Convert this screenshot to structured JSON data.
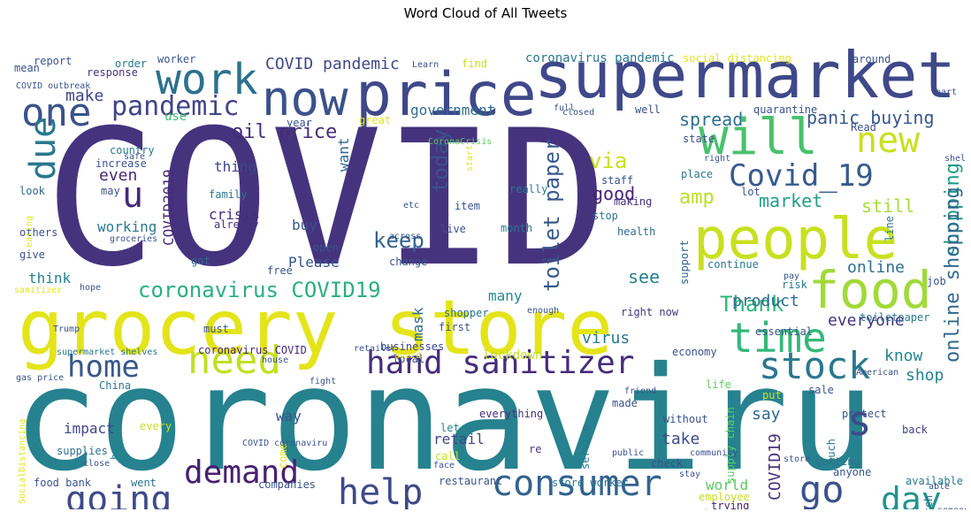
{
  "title": "Word Cloud of All Tweets",
  "words": [
    {
      "t": "COVID",
      "c": "#46337e"
    },
    {
      "t": "coronaviru",
      "c": "#26828e"
    },
    {
      "t": "grocery store",
      "c": "#e4e41a"
    },
    {
      "t": "supermarket",
      "c": "#3f4889"
    },
    {
      "t": "price",
      "c": "#3f4889"
    },
    {
      "t": "now",
      "c": "#3b528b"
    },
    {
      "t": "people",
      "c": "#c8e020"
    },
    {
      "t": "food",
      "c": "#a0da39"
    },
    {
      "t": "will",
      "c": "#4ac16d"
    },
    {
      "t": "hand sanitizer",
      "c": "#472d7b"
    },
    {
      "t": "consumer",
      "c": "#33638d"
    },
    {
      "t": "need",
      "c": "#c2df23"
    },
    {
      "t": "stock",
      "c": "#2a788e"
    },
    {
      "t": "time",
      "c": "#35b779"
    },
    {
      "t": "home",
      "c": "#38588c"
    },
    {
      "t": "going",
      "c": "#3e4a89"
    },
    {
      "t": "demand",
      "c": "#482071"
    },
    {
      "t": "help",
      "c": "#3e4989"
    },
    {
      "t": "work",
      "c": "#2c728e"
    },
    {
      "t": "one",
      "c": "#3b528b"
    },
    {
      "t": "due",
      "c": "#2a788e"
    },
    {
      "t": "Covid_19",
      "c": "#375a8c"
    },
    {
      "t": "new",
      "c": "#c8e020"
    },
    {
      "t": "go",
      "c": "#3b528b"
    },
    {
      "t": "day",
      "c": "#1f948c"
    },
    {
      "t": "s",
      "c": "#3e4989"
    },
    {
      "t": "u",
      "c": "#482878"
    },
    {
      "t": "pandemic",
      "c": "#414487"
    },
    {
      "t": "coronavirus COVID19",
      "c": "#2ab07f"
    },
    {
      "t": "COVID19 coronavirus",
      "c": "#90d743"
    },
    {
      "t": "toilet paper",
      "c": "#38598c"
    },
    {
      "t": "oil price",
      "c": "#472c7a"
    },
    {
      "t": "spread",
      "c": "#2c718e"
    },
    {
      "t": "panic buying",
      "c": "#38588c"
    },
    {
      "t": "shopping",
      "c": "#1f9a8a"
    },
    {
      "t": "online shopping",
      "c": "#31688e"
    },
    {
      "t": "COVID pandemic",
      "c": "#3f4889"
    },
    {
      "t": "Thank",
      "c": "#2fb47c"
    },
    {
      "t": "keep",
      "c": "#33638d"
    },
    {
      "t": "today",
      "c": "#3b528b"
    },
    {
      "t": "mask",
      "c": "#306a8e"
    },
    {
      "t": "via",
      "c": "#c8e020"
    },
    {
      "t": "amp",
      "c": "#bade28"
    },
    {
      "t": "good",
      "c": "#482475"
    },
    {
      "t": "market",
      "c": "#1f9e89"
    },
    {
      "t": "still",
      "c": "#a8db34"
    },
    {
      "t": "see",
      "c": "#26828e"
    },
    {
      "t": "online",
      "c": "#2d708e"
    },
    {
      "t": "everyone",
      "c": "#46327e"
    },
    {
      "t": "know",
      "c": "#24868e"
    },
    {
      "t": "shop",
      "c": "#25848e"
    },
    {
      "t": "say",
      "c": "#31688e"
    },
    {
      "t": "take",
      "c": "#3e4c8a"
    },
    {
      "t": "product",
      "c": "#306a8e"
    },
    {
      "t": "virus",
      "c": "#2a788e"
    },
    {
      "t": "make",
      "c": "#414487"
    },
    {
      "t": "even",
      "c": "#472878"
    },
    {
      "t": "working",
      "c": "#2a788e"
    },
    {
      "t": "crisis",
      "c": "#472c7a"
    },
    {
      "t": "buy",
      "c": "#3b528b"
    },
    {
      "t": "thing",
      "c": "#3f4788"
    },
    {
      "t": "want",
      "c": "#32648e"
    },
    {
      "t": "COVID2019",
      "c": "#482878"
    },
    {
      "t": "think",
      "c": "#26828e"
    },
    {
      "t": "many",
      "c": "#23898e"
    },
    {
      "t": "Please",
      "c": "#3b528b"
    },
    {
      "t": "government",
      "c": "#2f6c8e"
    },
    {
      "t": "use",
      "c": "#3dbc74"
    },
    {
      "t": "impact",
      "c": "#404688"
    },
    {
      "t": "way",
      "c": "#3b528b"
    },
    {
      "t": "week",
      "c": "#31688e"
    },
    {
      "t": "retail",
      "c": "#414487"
    },
    {
      "t": "customer",
      "c": "#2c728e"
    },
    {
      "t": "world",
      "c": "#5ec962"
    },
    {
      "t": "business",
      "c": "#2e6f8e"
    },
    {
      "t": "COVID19",
      "c": "#46337e"
    },
    {
      "t": "lockdown",
      "c": "#c0df25"
    },
    {
      "t": "local",
      "c": "#3e4a89"
    },
    {
      "t": "supplies",
      "c": "#2d708e"
    },
    {
      "t": "store worker",
      "c": "#2a778e"
    },
    {
      "t": "restaurant",
      "c": "#3b528b"
    },
    {
      "t": "shopping",
      "c": "#c8e020"
    },
    {
      "t": "food bank",
      "c": "#3b528b"
    },
    {
      "t": "companies",
      "c": "#3b528b"
    },
    {
      "t": "went",
      "c": "#2d708e"
    },
    {
      "t": "money",
      "c": "#482071"
    },
    {
      "t": "said",
      "c": "#3b528b"
    },
    {
      "t": "hour",
      "c": "#26828e"
    },
    {
      "t": "available",
      "c": "#2a788e"
    },
    {
      "t": "employee",
      "c": "#c8e020"
    },
    {
      "t": "trying",
      "c": "#482173"
    },
    {
      "t": "UK",
      "c": "#3b528b"
    },
    {
      "t": "March",
      "c": "#2c728e"
    },
    {
      "t": "back",
      "c": "#414487"
    },
    {
      "t": "getting",
      "c": "#2c728e"
    },
    {
      "t": "protect",
      "c": "#3b528b"
    },
    {
      "t": "everything",
      "c": "#472d7b"
    },
    {
      "t": "check",
      "c": "#3b528b"
    },
    {
      "t": "let",
      "c": "#24868e"
    },
    {
      "t": "call",
      "c": "#c8e020"
    },
    {
      "t": "re",
      "c": "#46337e"
    },
    {
      "t": "without",
      "c": "#3b528b"
    },
    {
      "t": "every",
      "c": "#c8e020"
    },
    {
      "t": "China",
      "c": "#2a788e"
    },
    {
      "t": "must",
      "c": "#3b528b"
    },
    {
      "t": "businesses",
      "c": "#3e4989"
    },
    {
      "t": "first",
      "c": "#3b528b"
    },
    {
      "t": "coronavirus COVID",
      "c": "#482878"
    },
    {
      "t": "economy",
      "c": "#3b528b"
    },
    {
      "t": "essential",
      "c": "#3b528b"
    },
    {
      "t": "continue",
      "c": "#2a788e"
    },
    {
      "t": "risk",
      "c": "#2a788e"
    },
    {
      "t": "job",
      "c": "#3b528b"
    },
    {
      "t": "support",
      "c": "#31688e"
    },
    {
      "t": "right now",
      "c": "#46337e"
    },
    {
      "t": "sanitizer",
      "c": "#e4e41a"
    },
    {
      "t": "shopper",
      "c": "#2d708e"
    },
    {
      "t": "free",
      "c": "#3b528b"
    },
    {
      "t": "got",
      "c": "#31688e"
    },
    {
      "t": "give",
      "c": "#3b528b"
    },
    {
      "t": "others",
      "c": "#3b528b"
    },
    {
      "t": "look",
      "c": "#31688e"
    },
    {
      "t": "may",
      "c": "#3b528b"
    },
    {
      "t": "country",
      "c": "#2a788e"
    },
    {
      "t": "increase",
      "c": "#3b528b"
    },
    {
      "t": "family",
      "c": "#2a788e"
    },
    {
      "t": "already",
      "c": "#46337e"
    },
    {
      "t": "open",
      "c": "#3b528b"
    },
    {
      "t": "change",
      "c": "#3b528b"
    },
    {
      "t": "year",
      "c": "#3b528b"
    },
    {
      "t": "great",
      "c": "#e4e41a"
    },
    {
      "t": "quarantine",
      "c": "#3b528b"
    },
    {
      "t": "well",
      "c": "#3b528b"
    },
    {
      "t": "state",
      "c": "#3b528b"
    },
    {
      "t": "place",
      "c": "#2a788e"
    },
    {
      "t": "lot",
      "c": "#3b528b"
    },
    {
      "t": "really",
      "c": "#2a788e"
    },
    {
      "t": "staff",
      "c": "#3b528b"
    },
    {
      "t": "making",
      "c": "#46337e"
    },
    {
      "t": "item",
      "c": "#3b528b"
    },
    {
      "t": "stop",
      "c": "#2a788e"
    },
    {
      "t": "live",
      "c": "#3b528b"
    },
    {
      "t": "month",
      "c": "#2a788e"
    },
    {
      "t": "health",
      "c": "#31688e"
    },
    {
      "t": "report",
      "c": "#3b528b"
    },
    {
      "t": "mean",
      "c": "#3b528b"
    },
    {
      "t": "order",
      "c": "#2a788e"
    },
    {
      "t": "response",
      "c": "#46337e"
    },
    {
      "t": "worker",
      "c": "#3b528b"
    },
    {
      "t": "find",
      "c": "#c8e020"
    },
    {
      "t": "around",
      "c": "#3b528b"
    },
    {
      "t": "coronavirus pandemic",
      "c": "#2a788e"
    },
    {
      "t": "social distancing",
      "c": "#e4e41a"
    },
    {
      "t": "Read",
      "c": "#3b528b"
    },
    {
      "t": "life",
      "c": "#5ec962"
    },
    {
      "t": "put",
      "c": "#c8e020"
    },
    {
      "t": "sale",
      "c": "#3b528b"
    },
    {
      "t": "made",
      "c": "#3b528b"
    },
    {
      "t": "service",
      "c": "#2a788e"
    },
    {
      "t": "supply chain",
      "c": "#5ec962"
    },
    {
      "t": "much",
      "c": "#2a788e"
    },
    {
      "t": "anyone",
      "c": "#3b528b"
    },
    {
      "t": "toiletpaper",
      "c": "#2a788e"
    },
    {
      "t": "line",
      "c": "#2a788e"
    },
    {
      "t": "SocialDistancing",
      "c": "#e4e41a"
    },
    {
      "t": "come",
      "c": "#e4e41a"
    },
    {
      "t": "stay",
      "c": "#3b528b"
    },
    {
      "t": "community",
      "c": "#3b528b"
    },
    {
      "t": "store",
      "c": "#3b528b"
    },
    {
      "t": "public",
      "c": "#3b528b"
    },
    {
      "t": "face",
      "c": "#3b528b"
    },
    {
      "t": "gas price",
      "c": "#3b528b"
    },
    {
      "t": "Trump",
      "c": "#3b528b"
    },
    {
      "t": "supermarket shelves",
      "c": "#2a788e"
    },
    {
      "t": "house",
      "c": "#3b528b"
    },
    {
      "t": "retailer",
      "c": "#3b528b"
    },
    {
      "t": "fight",
      "c": "#3b528b"
    },
    {
      "t": "friend",
      "c": "#3b528b"
    },
    {
      "t": "American",
      "c": "#3b528b"
    },
    {
      "t": "enough",
      "c": "#3b528b"
    },
    {
      "t": "avoid",
      "c": "#e4e41a"
    },
    {
      "t": "hope",
      "c": "#3b528b"
    },
    {
      "t": "pay",
      "c": "#3b528b"
    },
    {
      "t": "someone",
      "c": "#3b528b"
    },
    {
      "t": "able",
      "c": "#3b528b"
    },
    {
      "t": "close",
      "c": "#3b528b"
    },
    {
      "t": "COVID coronaviru",
      "c": "#3b528b"
    },
    {
      "t": "COVID outbreak",
      "c": "#3b528b"
    },
    {
      "t": "Learn",
      "c": "#3b528b"
    },
    {
      "t": "full",
      "c": "#3b528b"
    },
    {
      "t": "closed",
      "c": "#3b528b"
    },
    {
      "t": "CoronaCrisis",
      "c": "#5ec962"
    },
    {
      "t": "safe",
      "c": "#3b528b"
    },
    {
      "t": "start",
      "c": "#e4e41a"
    },
    {
      "t": "etc",
      "c": "#3b528b"
    },
    {
      "t": "right",
      "c": "#3b528b"
    },
    {
      "t": "shelve",
      "c": "#3b528b"
    },
    {
      "t": "part",
      "c": "#3b528b"
    },
    {
      "t": "groceries",
      "c": "#3b528b"
    },
    {
      "t": "across",
      "c": "#3b528b"
    },
    {
      "t": "eating",
      "c": "#e4e41a"
    }
  ]
}
